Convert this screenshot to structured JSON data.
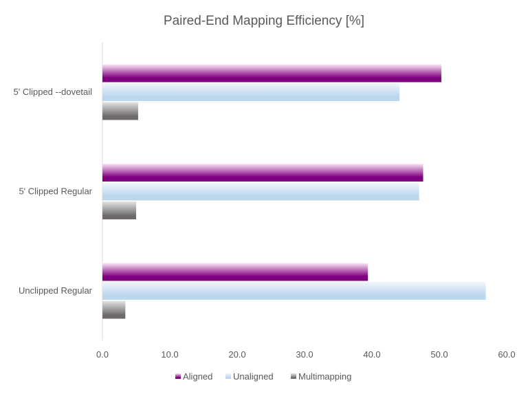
{
  "chart_data": {
    "type": "bar",
    "orientation": "horizontal",
    "title": "Paired-End Mapping Efficiency [%]",
    "categories": [
      "5' Clipped --dovetail",
      "5' Clipped Regular",
      "Unclipped Regular"
    ],
    "series": [
      {
        "name": "Aligned",
        "color": "#7f007f",
        "values": [
          50.3,
          47.6,
          39.4
        ]
      },
      {
        "name": "Unaligned",
        "color": "#bcd6ee",
        "values": [
          44.1,
          47.0,
          56.9
        ]
      },
      {
        "name": "Multimapping",
        "color": "#6e6a6a",
        "values": [
          5.3,
          5.0,
          3.4
        ]
      }
    ],
    "xlim": [
      0,
      60
    ],
    "xticks": [
      "0.0",
      "10.0",
      "20.0",
      "30.0",
      "40.0",
      "50.0",
      "60.0"
    ],
    "grid": false,
    "legend": "bottom"
  }
}
